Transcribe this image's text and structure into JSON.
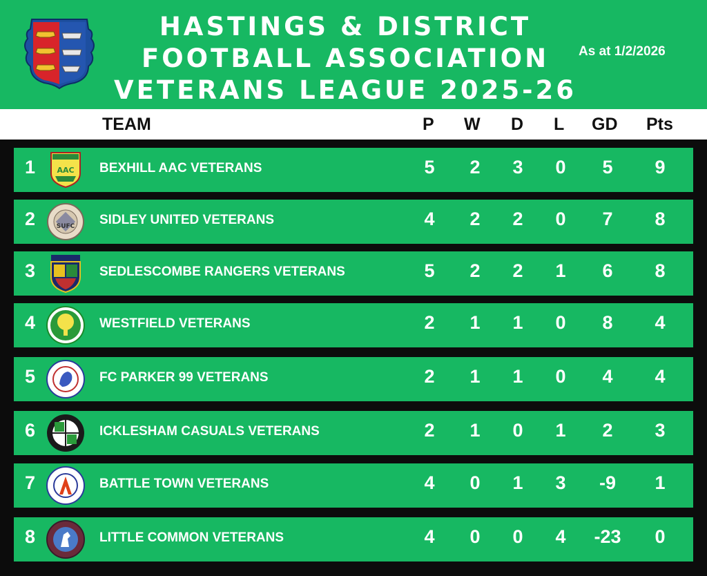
{
  "header": {
    "title_line1": "HASTINGS & DISTRICT",
    "title_line2": "FOOTBALL ASSOCIATION",
    "title_line3": "VETERANS LEAGUE 2025-26",
    "as_at": "As at 1/2/2026"
  },
  "columns": {
    "team": "TEAM",
    "p": "P",
    "w": "W",
    "d": "D",
    "l": "L",
    "gd": "GD",
    "pts": "Pts"
  },
  "colors": {
    "green": "#17b862",
    "black": "#0c0c0c",
    "white": "#ffffff"
  },
  "rows": [
    {
      "pos": "1",
      "team": "BEXHILL AAC VETERANS",
      "p": "5",
      "w": "2",
      "d": "3",
      "l": "0",
      "gd": "5",
      "pts": "9",
      "badge_icon": "bexhill-aac-crest-icon"
    },
    {
      "pos": "2",
      "team": "SIDLEY UNITED VETERANS",
      "p": "4",
      "w": "2",
      "d": "2",
      "l": "0",
      "gd": "7",
      "pts": "8",
      "badge_icon": "sidley-united-crest-icon"
    },
    {
      "pos": "3",
      "team": "SEDLESCOMBE RANGERS VETERANS",
      "p": "5",
      "w": "2",
      "d": "2",
      "l": "1",
      "gd": "6",
      "pts": "8",
      "badge_icon": "sedlescombe-rangers-crest-icon"
    },
    {
      "pos": "4",
      "team": "WESTFIELD VETERANS",
      "p": "2",
      "w": "1",
      "d": "1",
      "l": "0",
      "gd": "8",
      "pts": "4",
      "badge_icon": "westfield-crest-icon"
    },
    {
      "pos": "5",
      "team": "FC PARKER 99 VETERANS",
      "p": "2",
      "w": "1",
      "d": "1",
      "l": "0",
      "gd": "4",
      "pts": "4",
      "badge_icon": "fc-parker-99-crest-icon"
    },
    {
      "pos": "6",
      "team": "ICKLESHAM CASUALS VETERANS",
      "p": "2",
      "w": "1",
      "d": "0",
      "l": "1",
      "gd": "2",
      "pts": "3",
      "badge_icon": "icklesham-casuals-crest-icon"
    },
    {
      "pos": "7",
      "team": "BATTLE TOWN VETERANS",
      "p": "4",
      "w": "0",
      "d": "1",
      "l": "3",
      "gd": "-9",
      "pts": "1",
      "badge_icon": "battle-town-crest-icon"
    },
    {
      "pos": "8",
      "team": "LITTLE COMMON VETERANS",
      "p": "4",
      "w": "0",
      "d": "0",
      "l": "4",
      "gd": "-23",
      "pts": "0",
      "badge_icon": "little-common-crest-icon"
    }
  ]
}
